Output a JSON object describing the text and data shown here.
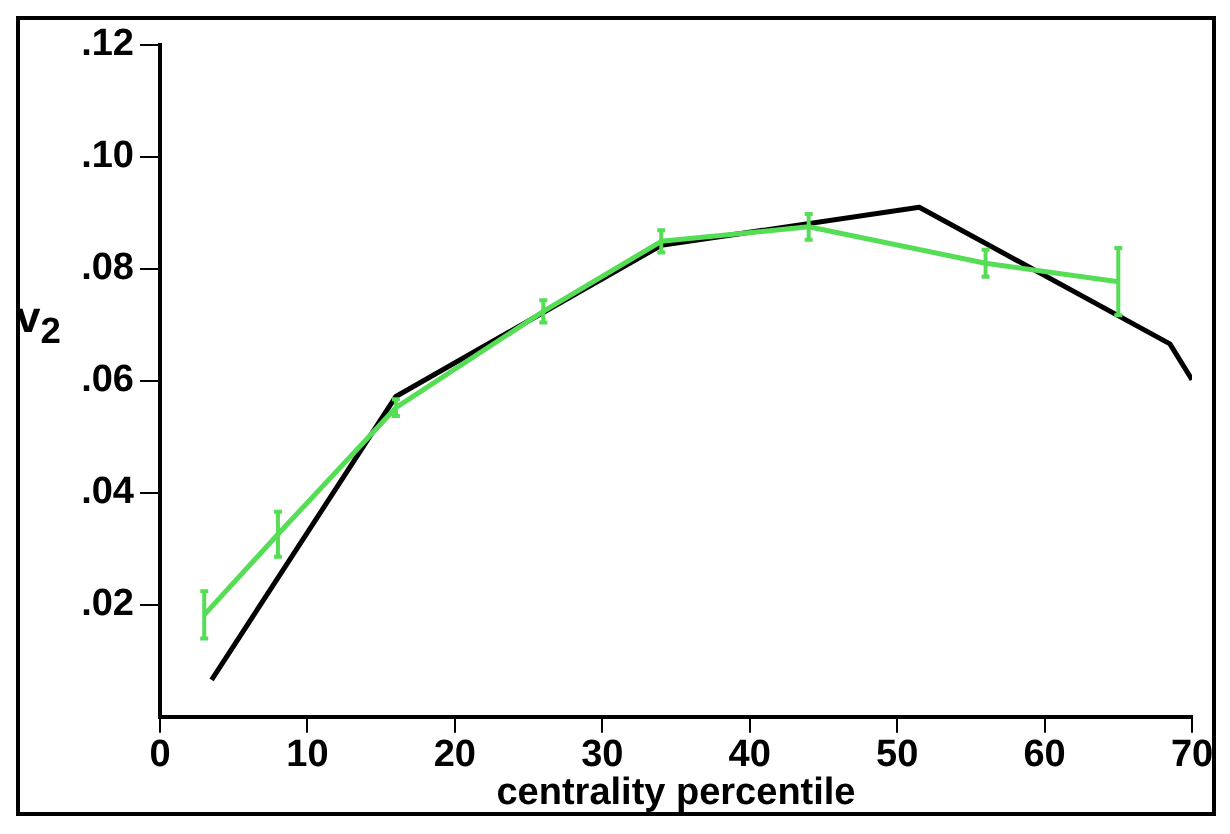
{
  "chart_data": {
    "type": "line",
    "xlabel": "centrality percentile",
    "ylabel": "v$_{2}$",
    "xlim": [
      0,
      70
    ],
    "ylim": [
      0,
      0.12
    ],
    "xticks": [
      0,
      10,
      20,
      30,
      40,
      50,
      60,
      70
    ],
    "yticks": [
      {
        "value": 0.02,
        "label": ".02"
      },
      {
        "value": 0.04,
        "label": ".04"
      },
      {
        "value": 0.06,
        "label": ".06"
      },
      {
        "value": 0.08,
        "label": ".08"
      },
      {
        "value": 0.1,
        "label": ".10"
      },
      {
        "value": 0.12,
        "label": ".12"
      }
    ],
    "grid": false,
    "legend": false,
    "marker": "none",
    "line_style": "solid",
    "series": [
      {
        "color": "#55dd55",
        "x": [
          3,
          8,
          16,
          26,
          34,
          44,
          56,
          65
        ],
        "values": [
          0.0182,
          0.0326,
          0.0552,
          0.0724,
          0.0849,
          0.0875,
          0.081,
          0.0777
        ],
        "errors": [
          0.0042,
          0.004,
          0.0015,
          0.002,
          0.002,
          0.0023,
          0.0024,
          0.006
        ]
      },
      {
        "color": "#000000",
        "x": [
          3.5,
          16,
          34,
          51.5,
          68.5,
          70
        ],
        "values": [
          0.0066,
          0.0572,
          0.0842,
          0.091,
          0.0666,
          0.0602
        ]
      }
    ]
  }
}
